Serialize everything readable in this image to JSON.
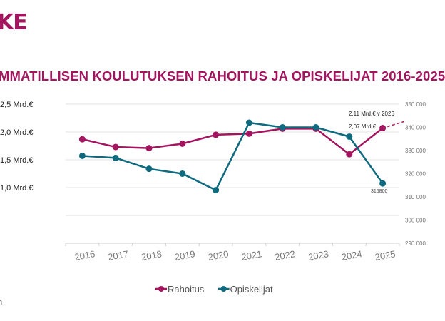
{
  "logo": {
    "text": "KE"
  },
  "chart_data": {
    "type": "line",
    "title": "MMATILLISEN KOULUTUKSEN RAHOITUS JA OPISKELIJAT 2016-2025",
    "categories": [
      "2016",
      "2017",
      "2018",
      "2019",
      "2020",
      "2021",
      "2022",
      "2023",
      "2024",
      "2025"
    ],
    "left_axis": {
      "ticks": [
        "2,5 Mrd.€",
        "2,0 Mrd.€",
        "1,5 Mrd.€",
        "1,0 Mrd.€"
      ],
      "tick_values": [
        2.5,
        2.0,
        1.5,
        1.0
      ],
      "ylim": [
        0,
        2.5
      ]
    },
    "right_axis": {
      "ticks": [
        "350 000",
        "340 000",
        "330 000",
        "320 000",
        "310 000",
        "300 000",
        "290 000"
      ],
      "tick_values": [
        350000,
        340000,
        330000,
        320000,
        310000,
        300000,
        290000
      ],
      "ylim": [
        290000,
        350000
      ]
    },
    "grid": true,
    "legend": "bottom",
    "series": [
      {
        "name": "Rahoitus",
        "axis": "left",
        "color": "#a3155f",
        "values": [
          1.87,
          1.73,
          1.71,
          1.79,
          1.95,
          1.97,
          2.06,
          2.06,
          1.6,
          2.07
        ]
      },
      {
        "name": "Opiskelijat",
        "axis": "right",
        "color": "#0e6a7e",
        "values": [
          327700,
          326800,
          322100,
          320000,
          312900,
          342000,
          340000,
          340000,
          336000,
          315800
        ]
      }
    ],
    "projection": {
      "series": "Rahoitus",
      "value": 2.11,
      "style": "dashed"
    },
    "annotations": {
      "forecast": "2,11 Mrd.€  v 2026",
      "last_rahoitus": "2,07 Mrd.€",
      "last_opiskelijat": "315800"
    }
  },
  "footer": {
    "note": "n"
  }
}
